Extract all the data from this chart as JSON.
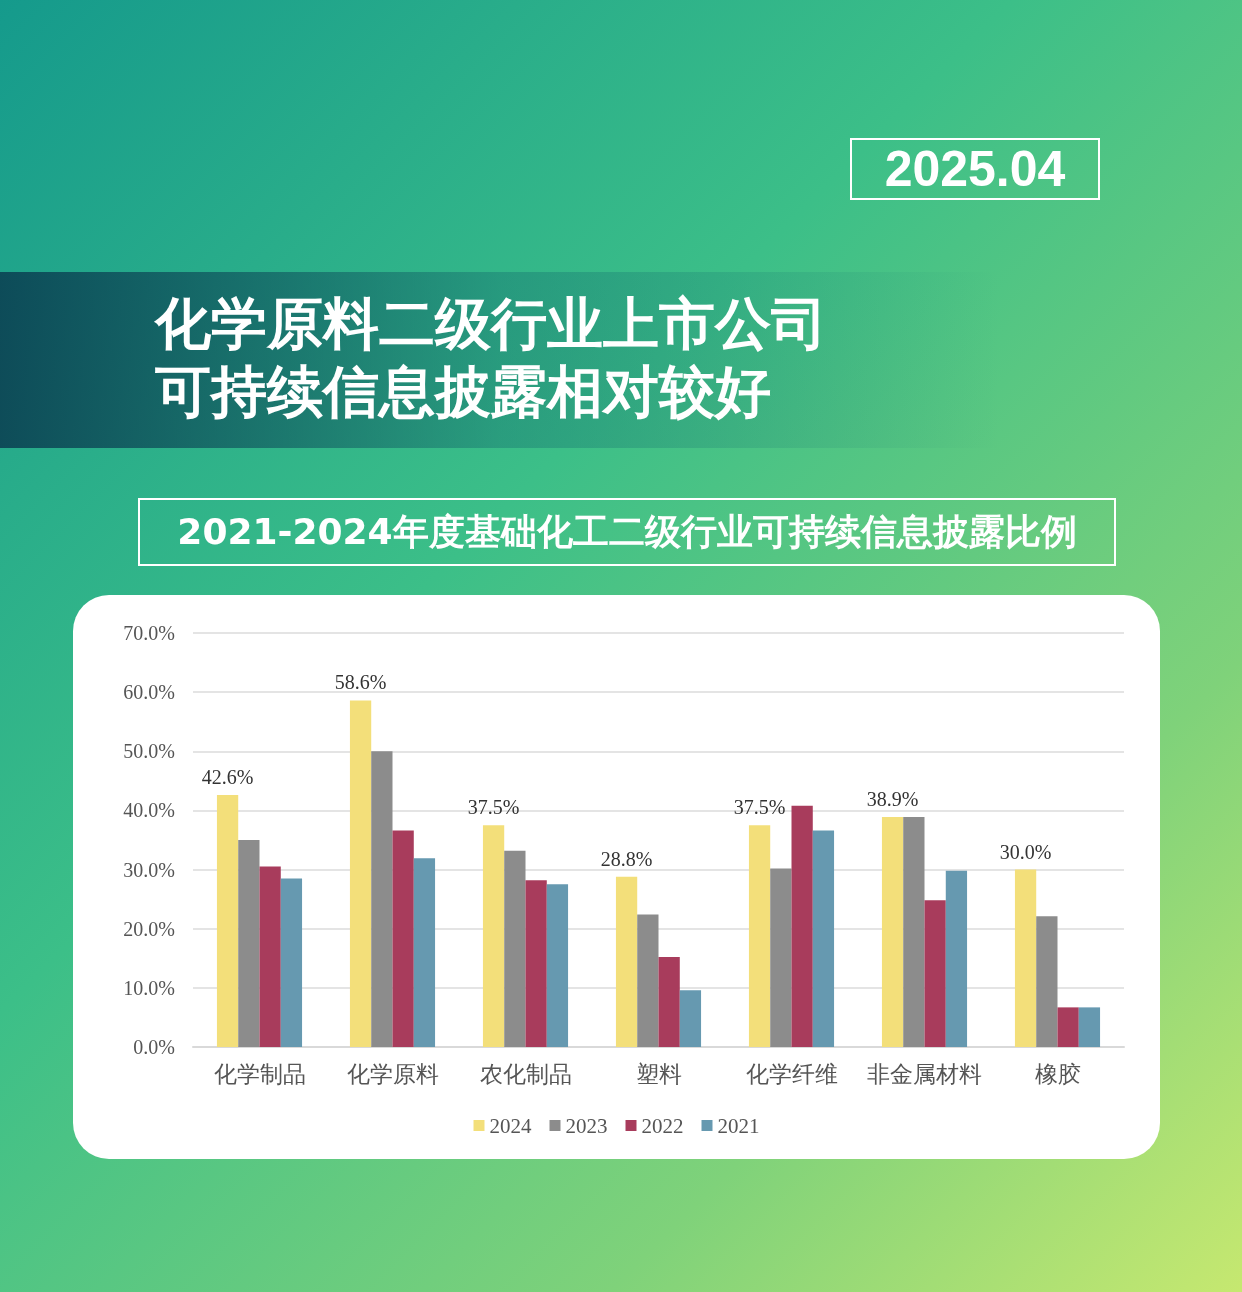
{
  "chart_data": {
    "type": "bar",
    "title": "化学原料二级行业上市公司可持续信息披露相对较好",
    "subtitle": "2021-2024年度基础化工二级行业可持续信息披露比例",
    "annotations": [
      "2025.04"
    ],
    "categories": [
      "化学制品",
      "化学原料",
      "农化制品",
      "塑料",
      "化学纤维",
      "非金属材料",
      "橡胶"
    ],
    "series": [
      {
        "name": "2024",
        "color": "#f3df7a",
        "values": [
          42.6,
          58.6,
          37.5,
          28.8,
          37.5,
          38.9,
          30.0
        ],
        "value_labels": [
          "42.6%",
          "58.6%",
          "37.5%",
          "28.8%",
          "37.5%",
          "38.9%",
          "30.0%"
        ]
      },
      {
        "name": "2023",
        "color": "#8c8c8c",
        "values": [
          35.0,
          50.0,
          33.2,
          22.4,
          30.2,
          38.9,
          22.1
        ]
      },
      {
        "name": "2022",
        "color": "#a83c5c",
        "values": [
          30.5,
          36.6,
          28.2,
          15.2,
          40.8,
          24.8,
          6.7
        ]
      },
      {
        "name": "2021",
        "color": "#6699b0",
        "values": [
          28.5,
          31.9,
          27.5,
          9.6,
          36.6,
          29.8,
          6.7
        ]
      }
    ],
    "ylim": [
      0,
      70
    ],
    "yticks": [
      {
        "value": 0,
        "label": "0.0%"
      },
      {
        "value": 10,
        "label": "10.0%"
      },
      {
        "value": 20,
        "label": "20.0%"
      },
      {
        "value": 30,
        "label": "30.0%"
      },
      {
        "value": 40,
        "label": "40.0%"
      },
      {
        "value": 50,
        "label": "50.0%"
      },
      {
        "value": 60,
        "label": "60.0%"
      },
      {
        "value": 70,
        "label": "70.0%"
      }
    ],
    "grid": "y",
    "legend": "bottom"
  }
}
